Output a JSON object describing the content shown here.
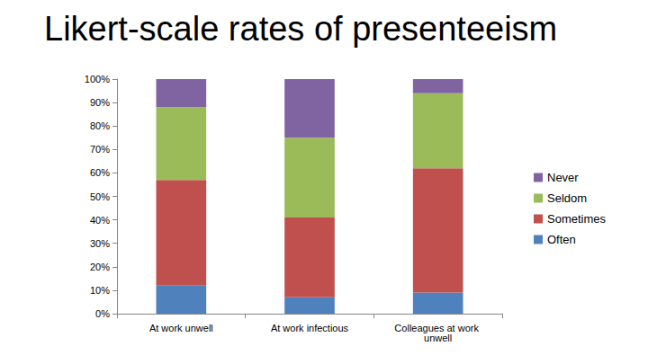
{
  "chart_data": {
    "type": "bar",
    "title": "Likert-scale rates of presenteeism",
    "categories": [
      "At work unwell",
      "At work infectious",
      "Colleagues at work unwell"
    ],
    "series": [
      {
        "name": "Often",
        "color": "#4f81bd",
        "values": [
          12,
          7,
          9
        ]
      },
      {
        "name": "Sometimes",
        "color": "#c0504d",
        "values": [
          45,
          34,
          53
        ]
      },
      {
        "name": "Seldom",
        "color": "#9bbb59",
        "values": [
          31,
          34,
          32
        ]
      },
      {
        "name": "Never",
        "color": "#8064a2",
        "values": [
          12,
          25,
          6
        ]
      }
    ],
    "ylim": [
      0,
      100
    ],
    "yticks": [
      {
        "value": 0,
        "label": "0%"
      },
      {
        "value": 10,
        "label": "10%"
      },
      {
        "value": 20,
        "label": "20%"
      },
      {
        "value": 30,
        "label": "30%"
      },
      {
        "value": 40,
        "label": "40%"
      },
      {
        "value": 50,
        "label": "50%"
      },
      {
        "value": 60,
        "label": "60%"
      },
      {
        "value": 70,
        "label": "70%"
      },
      {
        "value": 80,
        "label": "80%"
      },
      {
        "value": 90,
        "label": "90%"
      },
      {
        "value": 100,
        "label": "100%"
      }
    ],
    "stacked": true,
    "grid": false,
    "legend": "right"
  }
}
